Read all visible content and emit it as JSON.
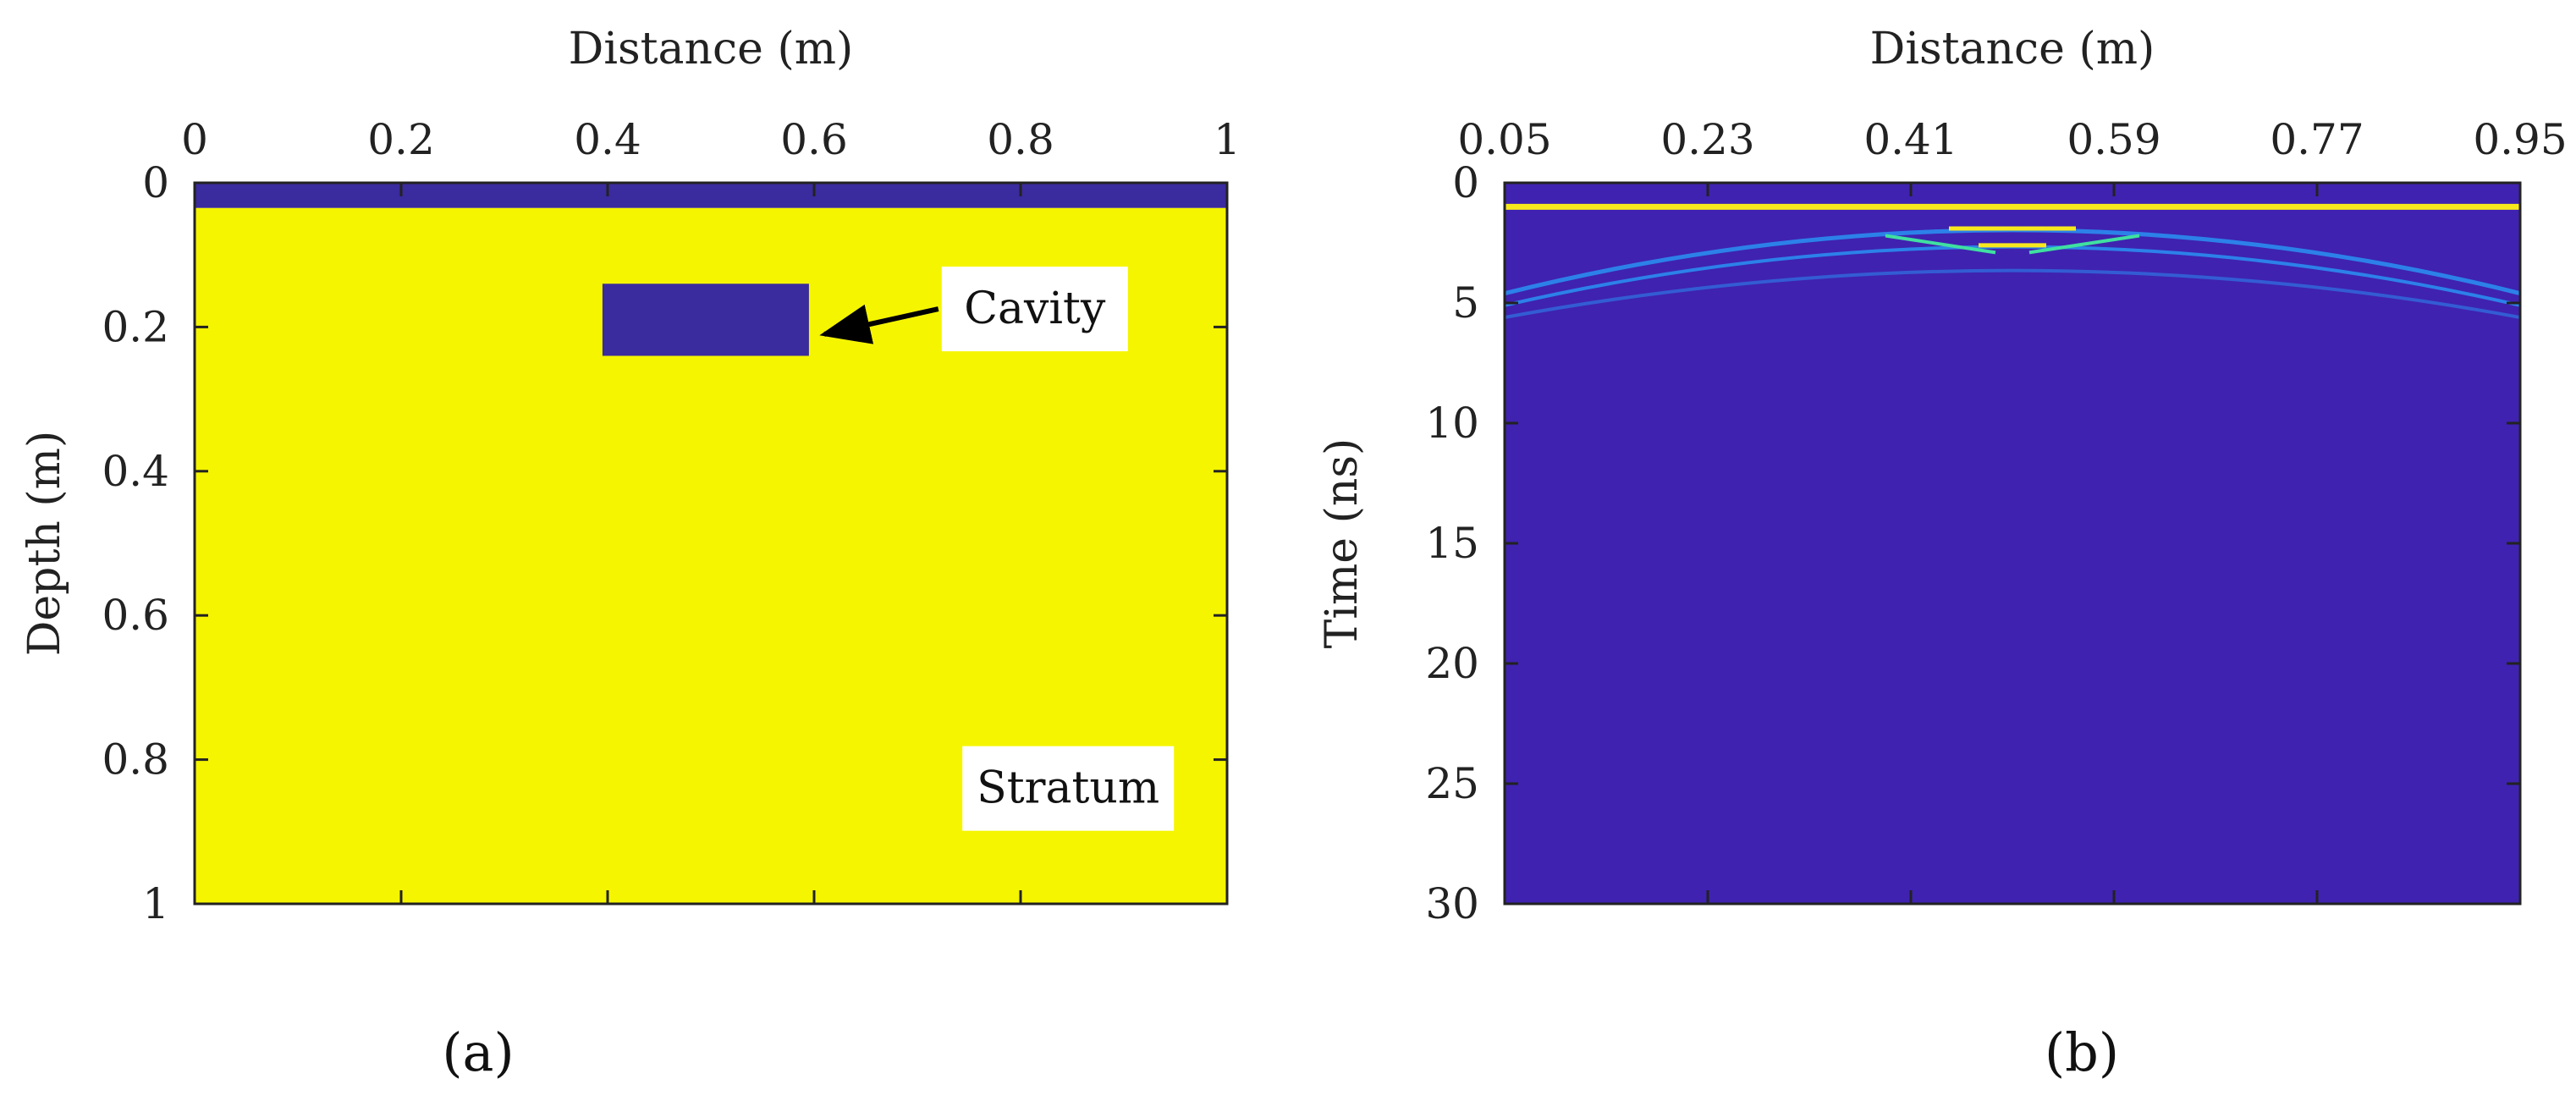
{
  "colors": {
    "stratum": "#f5f500",
    "dark": "#3a2b9e",
    "gpr_bg": "#3f22b0",
    "hyperbola": "#2a8cf0",
    "bright": "#f7e81e",
    "axis": "#222222"
  },
  "chart_data": [
    {
      "type": "heatmap",
      "panel": "(a)",
      "xlabel": "Distance (m)",
      "ylabel": "Depth (m)",
      "xlim": [
        0,
        1
      ],
      "ylim": [
        0,
        1
      ],
      "y_inverted": true,
      "x_axis_position": "top",
      "x_ticks": [
        0,
        0.2,
        0.4,
        0.6,
        0.8,
        1
      ],
      "x_tick_labels": [
        "0",
        "0.2",
        "0.4",
        "0.6",
        "0.8",
        "1"
      ],
      "y_ticks": [
        0,
        0.2,
        0.4,
        0.6,
        0.8,
        1
      ],
      "y_tick_labels": [
        "0",
        "0.2",
        "0.4",
        "0.6",
        "0.8",
        "1"
      ],
      "regions": [
        {
          "name": "air layer",
          "x": [
            0,
            1
          ],
          "depth": [
            0,
            0.035
          ],
          "color": "dark"
        },
        {
          "name": "stratum",
          "x": [
            0,
            1
          ],
          "depth": [
            0.035,
            1
          ],
          "color": "stratum"
        },
        {
          "name": "cavity",
          "x": [
            0.395,
            0.595
          ],
          "depth": [
            0.14,
            0.24
          ],
          "color": "dark"
        }
      ],
      "annotations": [
        {
          "text": "Cavity",
          "x": 0.74,
          "y": 0.175,
          "arrow_to": [
            0.61,
            0.21
          ]
        },
        {
          "text": "Stratum",
          "x": 0.76,
          "y": 0.84
        }
      ]
    },
    {
      "type": "heatmap",
      "panel": "(b)",
      "xlabel": "Distance (m)",
      "ylabel": "Time (ns)",
      "xlim": [
        0.05,
        0.95
      ],
      "ylim": [
        0,
        30
      ],
      "y_inverted": true,
      "x_axis_position": "top",
      "x_ticks": [
        0.05,
        0.23,
        0.41,
        0.59,
        0.77,
        0.95
      ],
      "x_tick_labels": [
        "0.05",
        "0.23",
        "0.41",
        "0.59",
        "0.77",
        "0.95"
      ],
      "y_ticks": [
        0,
        5,
        10,
        15,
        20,
        25,
        30
      ],
      "y_tick_labels": [
        "0",
        "5",
        "10",
        "15",
        "20",
        "25",
        "30"
      ],
      "direct_wave_time_ns": 1.0,
      "hyperbolas": [
        {
          "apex_x": 0.5,
          "apex_t": 1.9,
          "edge_t": 4.6
        },
        {
          "apex_x": 0.5,
          "apex_t": 2.6,
          "edge_t": 5.1
        },
        {
          "apex_x": 0.5,
          "apex_t": 3.6,
          "edge_t": 5.6
        }
      ]
    }
  ]
}
